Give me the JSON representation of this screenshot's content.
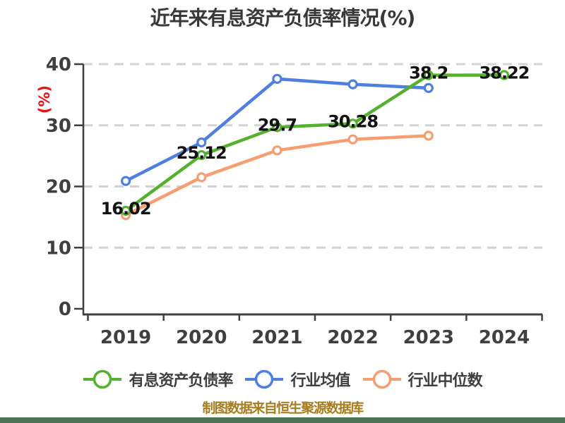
{
  "title": "近年来有息资产负债率情况(%)",
  "footer": "制图数据来自恒生聚源数据库",
  "colors": {
    "series_green": "#54b12d",
    "series_blue": "#4d7ee0",
    "series_orange": "#f79d70",
    "grid": "#d2d2d2",
    "axis": "#3f3f3f",
    "tick_text": "#3f3f3f",
    "title_text": "#383838",
    "data_label_text": "#121212",
    "y_unit_red": "#e81313",
    "footer_gold": "#a87c1e",
    "bottom_band_green": "#4e7153",
    "marker_fill": "#ffffff"
  },
  "chart_data": {
    "type": "line",
    "title": "近年来有息资产负债率情况(%)",
    "xlabel": "",
    "ylabel": "(%)",
    "ylim": [
      0,
      40
    ],
    "yticks": [
      0,
      10,
      20,
      30,
      40
    ],
    "grid": "horizontal-dashed",
    "legend_position": "bottom",
    "categories": [
      "2019",
      "2020",
      "2021",
      "2022",
      "2023",
      "2024"
    ],
    "series": [
      {
        "name": "有息资产负债率",
        "color": "#54b12d",
        "values": [
          16.02,
          25.12,
          29.7,
          30.28,
          38.2,
          38.22
        ],
        "data_labels": [
          "16.02",
          "25.12",
          "29.7",
          "30.28",
          "38.2",
          "38.22"
        ]
      },
      {
        "name": "行业均值",
        "color": "#4d7ee0",
        "values": [
          20.9,
          27.2,
          37.6,
          36.7,
          36.1,
          null
        ],
        "data_labels": []
      },
      {
        "name": "行业中位数",
        "color": "#f79d70",
        "values": [
          15.3,
          21.5,
          25.9,
          27.7,
          28.3,
          null
        ],
        "data_labels": []
      }
    ]
  }
}
